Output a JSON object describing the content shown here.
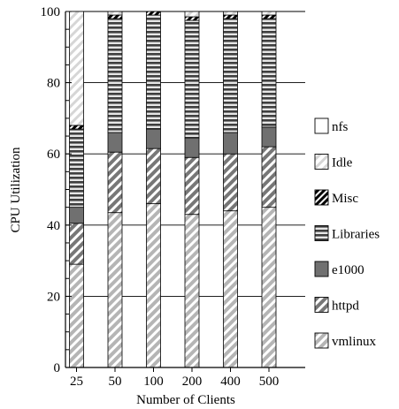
{
  "chart_data": {
    "type": "bar",
    "stacked": true,
    "xlabel": "Number of Clients",
    "ylabel": "CPU Utilization",
    "ylim": [
      0,
      100
    ],
    "yticks": [
      0,
      20,
      40,
      60,
      80,
      100
    ],
    "grid": "horizontal",
    "legend_position": "right",
    "categories": [
      "25",
      "50",
      "100",
      "200",
      "400",
      "500"
    ],
    "series": [
      {
        "name": "vmlinux",
        "pattern": "light-diagonal",
        "color": "#bdbdbd",
        "values": [
          29,
          43.5,
          46,
          43,
          44,
          45
        ]
      },
      {
        "name": "httpd",
        "pattern": "dark-diagonal",
        "color": "#8c8c8c",
        "values": [
          11.5,
          17,
          15.5,
          16,
          16,
          17
        ]
      },
      {
        "name": "e1000",
        "pattern": "solid",
        "color": "#707070",
        "values": [
          4.5,
          5.5,
          5.5,
          5.5,
          6,
          5.5
        ]
      },
      {
        "name": "Libraries",
        "pattern": "horizontal",
        "color": "#555555",
        "values": [
          22,
          32,
          32,
          33,
          32,
          30.5
        ]
      },
      {
        "name": "Misc",
        "pattern": "black-diagonal",
        "color": "#000000",
        "values": [
          1,
          1,
          1,
          1,
          1,
          1
        ]
      },
      {
        "name": "Idle",
        "pattern": "faint-diagonal",
        "color": "#d8d8d8",
        "values": [
          32,
          1,
          0,
          1.5,
          1,
          1
        ]
      },
      {
        "name": "nfs",
        "pattern": "blank",
        "color": "#ffffff",
        "values": [
          0,
          0,
          0,
          0,
          0,
          0
        ]
      }
    ],
    "legend_order": [
      "nfs",
      "Idle",
      "Misc",
      "Libraries",
      "e1000",
      "httpd",
      "vmlinux"
    ]
  }
}
